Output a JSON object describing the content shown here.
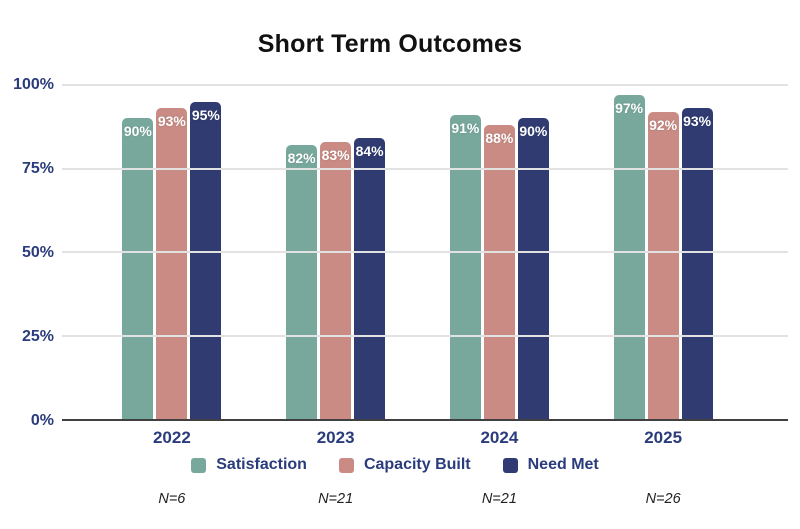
{
  "chart_data": {
    "type": "bar",
    "title": "Short Term Outcomes",
    "categories": [
      "2022",
      "2023",
      "2024",
      "2025"
    ],
    "series": [
      {
        "name": "Satisfaction",
        "color": "#78A89C",
        "values": [
          90,
          82,
          91,
          97
        ]
      },
      {
        "name": "Capacity Built",
        "color": "#C98B84",
        "values": [
          93,
          83,
          88,
          92
        ]
      },
      {
        "name": "Need Met",
        "color": "#303B72",
        "values": [
          95,
          84,
          90,
          93
        ]
      }
    ],
    "value_label_format": "{v}%",
    "yaxis": {
      "ticks": [
        "100%",
        "75%",
        "50%",
        "25%",
        "0%"
      ],
      "min": 0,
      "max": 100,
      "grid": true
    },
    "legend_position": "bottom",
    "sample_sizes": [
      "N=6",
      "N=21",
      "N=21",
      "N=26"
    ],
    "style_colors": {
      "axis_text": "#2B3C7C",
      "gridline": "#E2E2E2",
      "axis_line": "#404040",
      "title_text": "#111111",
      "bar_value_text": "#FFFFFF",
      "sample_size_text": "#222222",
      "background": "#FFFFFF"
    }
  }
}
